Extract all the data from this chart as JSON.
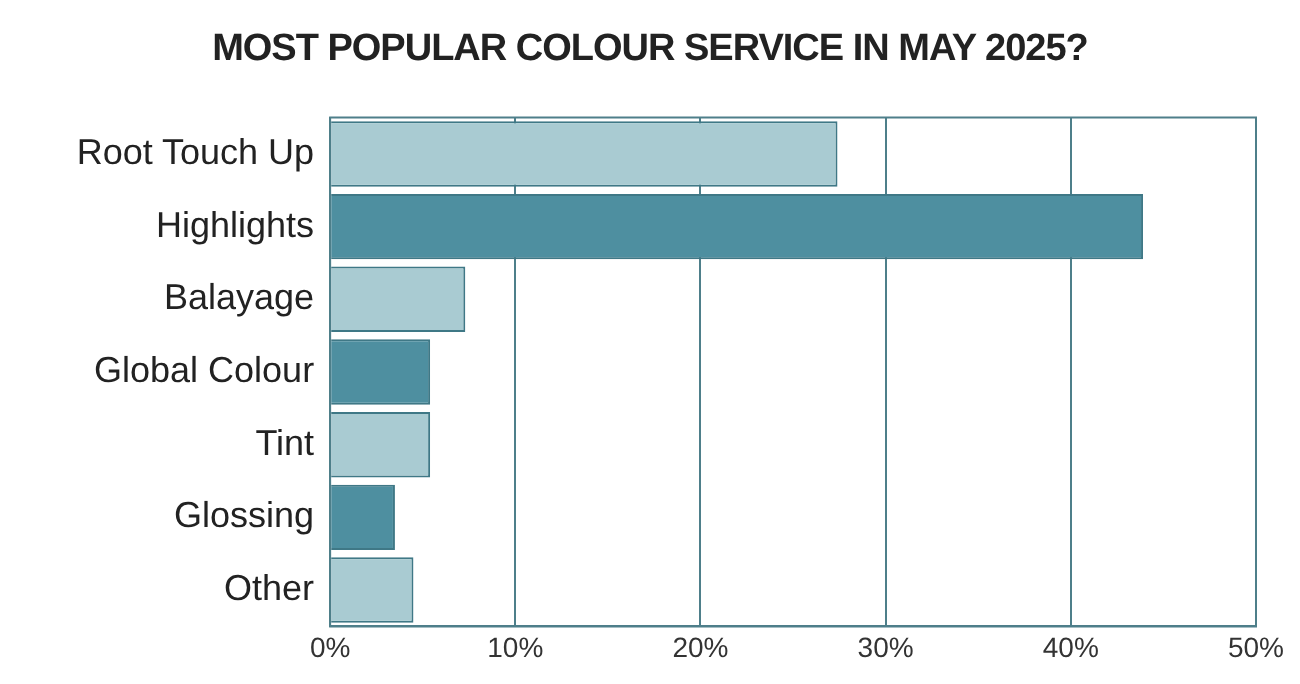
{
  "chart_data": {
    "type": "bar",
    "orientation": "horizontal",
    "title": "MOST POPULAR COLOUR SERVICE IN MAY 2025?",
    "categories": [
      "Root Touch Up",
      "Highlights",
      "Balayage",
      "Global Colour",
      "Tint",
      "Glossing",
      "Other"
    ],
    "values": [
      27.4,
      43.9,
      7.3,
      5.4,
      5.4,
      3.5,
      4.5
    ],
    "colors": [
      "#a9cbd2",
      "#4e8fa0",
      "#a9cbd2",
      "#4e8fa0",
      "#a9cbd2",
      "#4e8fa0",
      "#a9cbd2"
    ],
    "xlim": [
      0,
      50
    ],
    "xticks": [
      {
        "value": 0,
        "label": "0%"
      },
      {
        "value": 10,
        "label": "10%"
      },
      {
        "value": 20,
        "label": "20%"
      },
      {
        "value": 30,
        "label": "30%"
      },
      {
        "value": 40,
        "label": "40%"
      },
      {
        "value": 50,
        "label": "50%"
      }
    ],
    "grid": "x",
    "legend": false
  }
}
